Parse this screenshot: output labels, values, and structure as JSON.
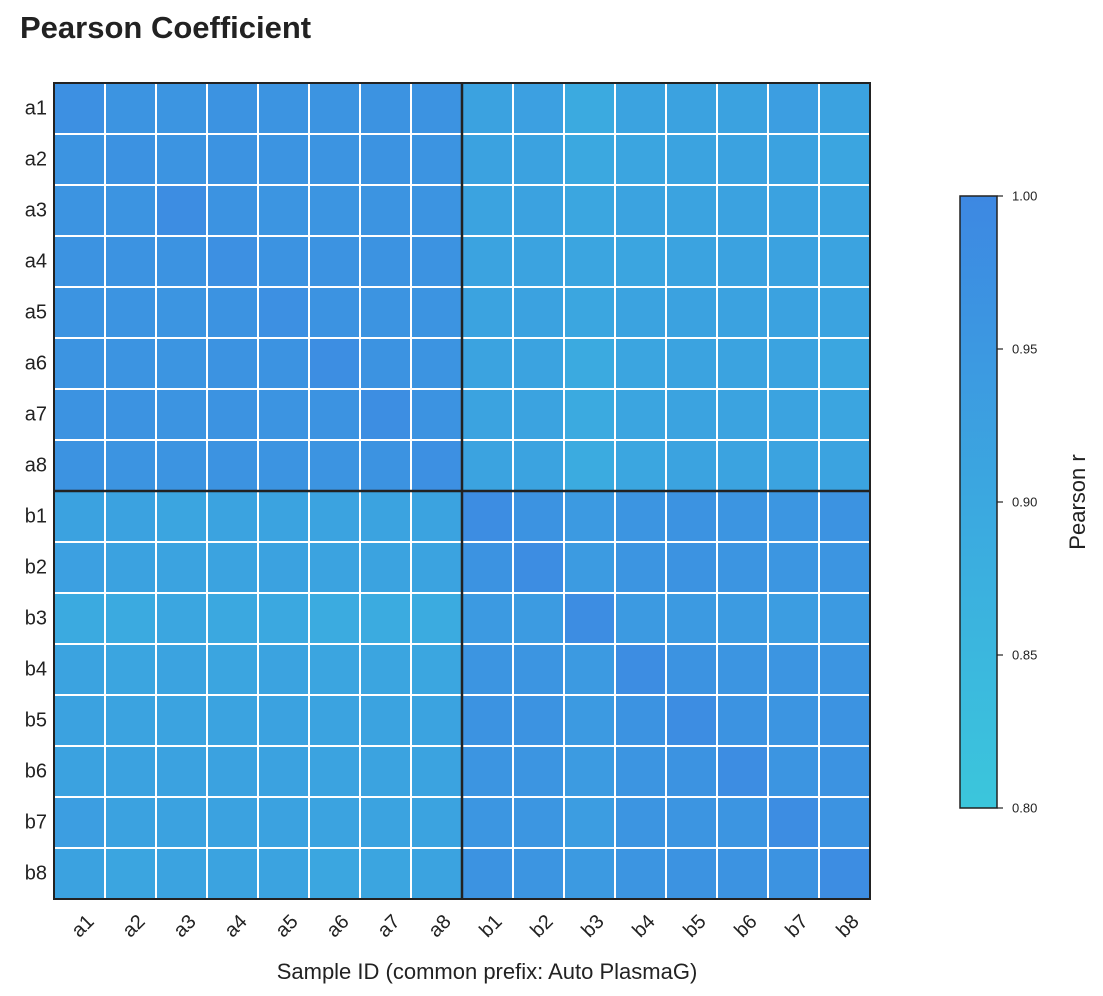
{
  "chart_data": {
    "type": "heatmap",
    "title": "Pearson Coefficient",
    "xlabel": "Sample ID (common prefix: Auto PlasmaG)",
    "ylabel": "",
    "x_categories": [
      "a1",
      "a2",
      "a3",
      "a4",
      "a5",
      "a6",
      "a7",
      "a8",
      "b1",
      "b2",
      "b3",
      "b4",
      "b5",
      "b6",
      "b7",
      "b8"
    ],
    "y_categories": [
      "a1",
      "a2",
      "a3",
      "a4",
      "a5",
      "a6",
      "a7",
      "a8",
      "b1",
      "b2",
      "b3",
      "b4",
      "b5",
      "b6",
      "b7",
      "b8"
    ],
    "values": [
      [
        0.975,
        0.962,
        0.96,
        0.965,
        0.962,
        0.962,
        0.965,
        0.965,
        0.92,
        0.925,
        0.895,
        0.915,
        0.92,
        0.92,
        0.93,
        0.92
      ],
      [
        0.962,
        0.97,
        0.962,
        0.965,
        0.962,
        0.962,
        0.965,
        0.962,
        0.92,
        0.92,
        0.9,
        0.91,
        0.915,
        0.92,
        0.92,
        0.91
      ],
      [
        0.962,
        0.962,
        0.985,
        0.965,
        0.96,
        0.958,
        0.962,
        0.962,
        0.915,
        0.92,
        0.905,
        0.915,
        0.915,
        0.92,
        0.92,
        0.915
      ],
      [
        0.965,
        0.965,
        0.965,
        0.975,
        0.965,
        0.965,
        0.965,
        0.965,
        0.915,
        0.915,
        0.91,
        0.91,
        0.915,
        0.92,
        0.92,
        0.915
      ],
      [
        0.962,
        0.962,
        0.96,
        0.965,
        0.975,
        0.965,
        0.962,
        0.962,
        0.915,
        0.92,
        0.905,
        0.915,
        0.92,
        0.92,
        0.92,
        0.915
      ],
      [
        0.962,
        0.962,
        0.958,
        0.965,
        0.965,
        0.98,
        0.965,
        0.962,
        0.915,
        0.915,
        0.895,
        0.91,
        0.915,
        0.915,
        0.915,
        0.905
      ],
      [
        0.965,
        0.965,
        0.962,
        0.965,
        0.962,
        0.965,
        0.98,
        0.965,
        0.915,
        0.915,
        0.895,
        0.91,
        0.915,
        0.915,
        0.915,
        0.91
      ],
      [
        0.965,
        0.962,
        0.962,
        0.965,
        0.962,
        0.962,
        0.965,
        0.975,
        0.915,
        0.915,
        0.89,
        0.905,
        0.915,
        0.915,
        0.915,
        0.915
      ],
      [
        0.92,
        0.92,
        0.91,
        0.915,
        0.915,
        0.915,
        0.915,
        0.915,
        0.985,
        0.965,
        0.945,
        0.96,
        0.965,
        0.96,
        0.955,
        0.965
      ],
      [
        0.925,
        0.92,
        0.915,
        0.915,
        0.92,
        0.915,
        0.915,
        0.915,
        0.965,
        0.985,
        0.94,
        0.96,
        0.965,
        0.96,
        0.955,
        0.96
      ],
      [
        0.895,
        0.895,
        0.905,
        0.9,
        0.9,
        0.89,
        0.89,
        0.89,
        0.945,
        0.94,
        0.985,
        0.945,
        0.945,
        0.94,
        0.935,
        0.945
      ],
      [
        0.915,
        0.91,
        0.915,
        0.91,
        0.915,
        0.91,
        0.91,
        0.905,
        0.96,
        0.96,
        0.945,
        0.985,
        0.965,
        0.96,
        0.96,
        0.96
      ],
      [
        0.92,
        0.915,
        0.915,
        0.915,
        0.92,
        0.915,
        0.915,
        0.915,
        0.965,
        0.965,
        0.945,
        0.965,
        0.985,
        0.965,
        0.96,
        0.965
      ],
      [
        0.92,
        0.92,
        0.92,
        0.92,
        0.92,
        0.915,
        0.915,
        0.915,
        0.96,
        0.96,
        0.94,
        0.96,
        0.965,
        0.985,
        0.96,
        0.965
      ],
      [
        0.93,
        0.92,
        0.92,
        0.92,
        0.92,
        0.915,
        0.915,
        0.915,
        0.955,
        0.955,
        0.935,
        0.96,
        0.96,
        0.96,
        0.985,
        0.965
      ],
      [
        0.92,
        0.91,
        0.915,
        0.915,
        0.915,
        0.905,
        0.91,
        0.915,
        0.965,
        0.96,
        0.945,
        0.96,
        0.965,
        0.965,
        0.965,
        0.985
      ]
    ],
    "colorbar": {
      "label": "Pearson r",
      "range": [
        0.8,
        1.0
      ],
      "ticks": [
        "1.00",
        "0.95",
        "0.90",
        "0.85",
        "0.80"
      ],
      "color_low": "#3bc6dc",
      "color_mid": "#3ba8e0",
      "color_high": "#3d88e2"
    },
    "grid_line_color": "#ffffff",
    "group_separator_color": "#222222",
    "group_size": 8
  }
}
